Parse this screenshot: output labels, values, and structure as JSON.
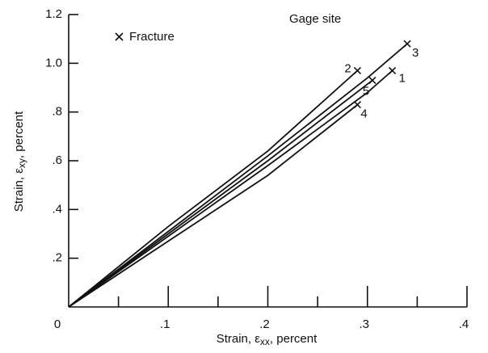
{
  "chart_data": {
    "type": "line",
    "legend_text": "Fracture",
    "annotation": "Gage site",
    "xlabel": [
      "Strain, ε",
      "xx",
      ", percent"
    ],
    "ylabel": [
      "Strain, ε",
      "xy",
      ", percent"
    ],
    "xlim": [
      0,
      0.4
    ],
    "ylim": [
      0,
      1.2
    ],
    "xticks": [
      {
        "value": 0,
        "label": "0"
      },
      {
        "value": 0.1,
        "label": ".1"
      },
      {
        "value": 0.2,
        "label": ".2"
      },
      {
        "value": 0.3,
        "label": ".3"
      },
      {
        "value": 0.4,
        "label": ".4"
      }
    ],
    "xminor": [
      0.05,
      0.15,
      0.25,
      0.35
    ],
    "yticks": [
      {
        "value": 0.2,
        "label": ".2"
      },
      {
        "value": 0.4,
        "label": ".4"
      },
      {
        "value": 0.6,
        "label": ".6"
      },
      {
        "value": 0.8,
        "label": ".8"
      },
      {
        "value": 1.0,
        "label": "1.0"
      },
      {
        "value": 1.2,
        "label": "1.2"
      }
    ],
    "series": [
      {
        "name": "1",
        "color": "#111",
        "x": [
          0,
          0.1,
          0.2,
          0.3,
          0.325
        ],
        "values": [
          0,
          0.29,
          0.58,
          0.88,
          0.97
        ]
      },
      {
        "name": "2",
        "color": "#111",
        "x": [
          0,
          0.1,
          0.2,
          0.29
        ],
        "values": [
          0,
          0.33,
          0.64,
          0.97
        ]
      },
      {
        "name": "3",
        "color": "#111",
        "x": [
          0,
          0.1,
          0.2,
          0.3,
          0.34
        ],
        "values": [
          0,
          0.31,
          0.62,
          0.94,
          1.08
        ]
      },
      {
        "name": "4",
        "color": "#111",
        "x": [
          0,
          0.1,
          0.2,
          0.29
        ],
        "values": [
          0,
          0.27,
          0.54,
          0.83
        ]
      },
      {
        "name": "5",
        "color": "#111",
        "x": [
          0,
          0.1,
          0.2,
          0.305
        ],
        "values": [
          0,
          0.3,
          0.6,
          0.93
        ]
      }
    ]
  }
}
